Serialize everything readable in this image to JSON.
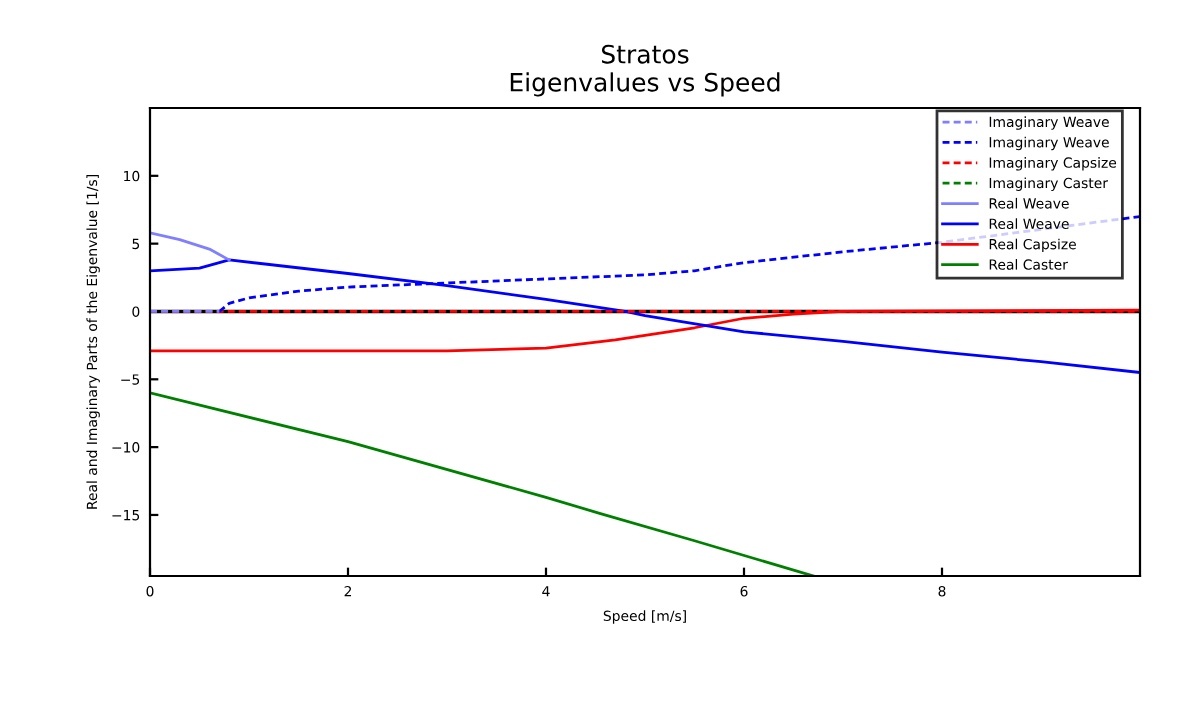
{
  "chart_data": {
    "type": "line",
    "title": "Stratos\nEigenvalues vs Speed",
    "xlabel": "Speed [m/s]",
    "ylabel": "Real and Imaginary Parts of the Eigenvalue [1/s]",
    "xlim": [
      0,
      10
    ],
    "ylim": [
      -19.5,
      15
    ],
    "xticks": [
      0,
      2,
      4,
      6,
      8
    ],
    "yticks": [
      -15,
      -10,
      -5,
      0,
      5,
      10
    ],
    "grid": false,
    "legend": "top right",
    "ref_lines": [
      {
        "axis": "y",
        "value": 0,
        "color": "#000000",
        "line_style": "solid"
      }
    ],
    "series": [
      {
        "name": "Imaginary Weave",
        "color": "#7f7fff",
        "line_style": "dashed",
        "x": [
          0,
          0.35,
          0.7
        ],
        "values": [
          0,
          0,
          0
        ]
      },
      {
        "name": "Imaginary Weave",
        "color": "#0000ff",
        "line_style": "dashed",
        "x": [
          0.7,
          0.8,
          1,
          1.5,
          2,
          3,
          4,
          5,
          5.5,
          6,
          7,
          8,
          10
        ],
        "values": [
          0,
          0.6,
          1.0,
          1.5,
          1.8,
          2.1,
          2.4,
          2.7,
          3.0,
          3.6,
          4.4,
          5.1,
          7.0
        ]
      },
      {
        "name": "Imaginary Capsize",
        "color": "#ff0000",
        "line_style": "dashed",
        "x": [
          0,
          10
        ],
        "values": [
          0,
          0
        ]
      },
      {
        "name": "Imaginary Caster",
        "color": "#008000",
        "line_style": "dashed"
      },
      {
        "name": "Real Weave",
        "color": "#7f7fff",
        "line_style": "solid",
        "x": [
          0,
          0.3,
          0.6,
          0.8
        ],
        "values": [
          5.8,
          5.3,
          4.6,
          3.8
        ]
      },
      {
        "name": "Real Weave",
        "color": "#0000ff",
        "line_style": "solid",
        "x": [
          0,
          0.5,
          0.8,
          2,
          3,
          4,
          4.8,
          5,
          6,
          7,
          8,
          9,
          10
        ],
        "values": [
          3.0,
          3.2,
          3.8,
          2.8,
          1.9,
          0.9,
          0,
          -0.3,
          -1.5,
          -2.2,
          -3.0,
          -3.7,
          -4.5
        ]
      },
      {
        "name": "Real Capsize",
        "color": "#ff0000",
        "line_style": "solid",
        "x": [
          0,
          2,
          3,
          4,
          4.7,
          5.5,
          6,
          6.5,
          7,
          10
        ],
        "values": [
          -2.9,
          -2.9,
          -2.9,
          -2.7,
          -2.1,
          -1.2,
          -0.5,
          -0.2,
          0,
          0.1
        ]
      },
      {
        "name": "Real Caster",
        "color": "#008000",
        "line_style": "solid",
        "x": [
          0,
          2,
          4,
          4.55,
          5.5,
          6.7
        ],
        "values": [
          -6.0,
          -9.6,
          -13.7,
          -14.9,
          -16.9,
          -19.5
        ]
      }
    ]
  }
}
